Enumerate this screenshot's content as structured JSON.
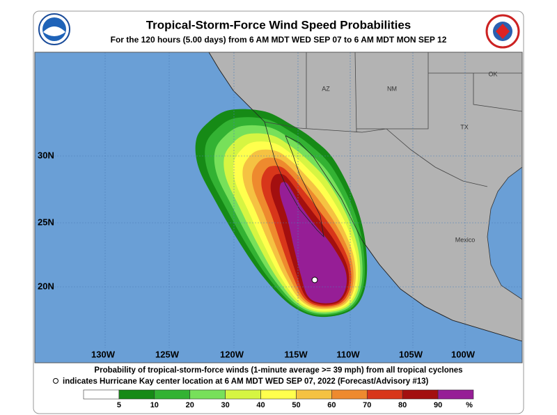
{
  "header": {
    "title": "Tropical-Storm-Force Wind Speed Probabilities",
    "subtitle": "For the 120 hours (5.00 days) from 6 AM MDT WED SEP 07 to 6 AM MDT MON SEP 12"
  },
  "map": {
    "lat_labels": [
      "30N",
      "25N",
      "20N"
    ],
    "lon_labels": [
      "130W",
      "125W",
      "120W",
      "115W",
      "110W",
      "105W",
      "100W"
    ],
    "place_labels": [
      "AZ",
      "NM",
      "OK",
      "TX",
      "Mexico"
    ]
  },
  "footer": {
    "line1": "Probability of tropical-storm-force winds (1-minute average >= 39 mph) from all tropical cyclones",
    "line2": "indicates Hurricane Kay center location at 6 AM MDT WED SEP 07, 2022 (Forecast/Advisory #13)"
  },
  "colorbar": {
    "colors": [
      "#ffffff",
      "#168a16",
      "#33b233",
      "#77e05a",
      "#d6f542",
      "#ffff4d",
      "#f5c242",
      "#ee8a2e",
      "#d8361a",
      "#a30f0f",
      "#961e96"
    ],
    "labels": [
      "5",
      "10",
      "20",
      "30",
      "40",
      "50",
      "60",
      "70",
      "80",
      "90",
      "%"
    ]
  }
}
